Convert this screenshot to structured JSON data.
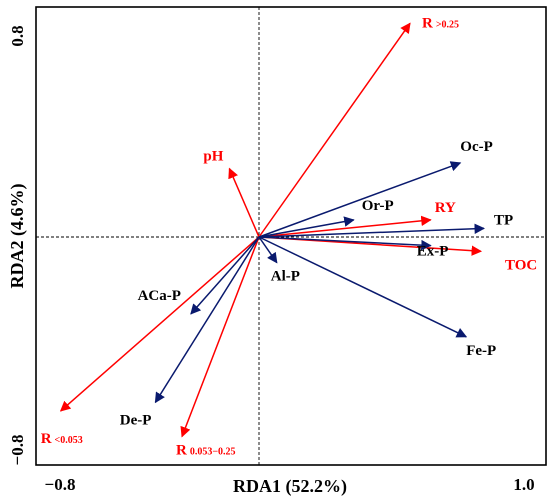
{
  "chart_data": {
    "type": "biplot",
    "xlabel": "RDA1 (52.2%)",
    "ylabel": "RDA2 (4.6%)",
    "xlim": [
      -0.8,
      1.0
    ],
    "ylim": [
      -0.8,
      0.8
    ],
    "x_ticks": [
      "−0.8",
      "1.0"
    ],
    "y_ticks": [
      "0.8",
      "−0.8"
    ],
    "colors": {
      "environment": "#ff0000",
      "response": "#0a1a6e"
    },
    "vectors": [
      {
        "label": "R",
        "sub": ">0.25",
        "group": "environment",
        "x": 0.51,
        "y": 0.75
      },
      {
        "label": "pH",
        "group": "environment",
        "x": -0.1,
        "y": 0.24
      },
      {
        "label": "RY",
        "group": "environment",
        "x": 0.58,
        "y": 0.06
      },
      {
        "label": "TOC",
        "group": "environment",
        "x": 0.75,
        "y": -0.05
      },
      {
        "label": "R",
        "sub": "<0.053",
        "group": "environment",
        "x": -0.67,
        "y": -0.61
      },
      {
        "label": "R",
        "sub": "0.053−0.25",
        "group": "environment",
        "x": -0.26,
        "y": -0.7
      },
      {
        "label": "Oc-P",
        "group": "response",
        "x": 0.68,
        "y": 0.26
      },
      {
        "label": "Or-P",
        "group": "response",
        "x": 0.32,
        "y": 0.06
      },
      {
        "label": "TP",
        "group": "response",
        "x": 0.76,
        "y": 0.03
      },
      {
        "label": "Ex-P",
        "group": "response",
        "x": 0.58,
        "y": -0.03
      },
      {
        "label": "Fe-P",
        "group": "response",
        "x": 0.7,
        "y": -0.35
      },
      {
        "label": "Al-P",
        "group": "response",
        "x": 0.06,
        "y": -0.09
      },
      {
        "label": "ACa-P",
        "group": "response",
        "x": -0.23,
        "y": -0.27
      },
      {
        "label": "De-P",
        "group": "response",
        "x": -0.35,
        "y": -0.58
      }
    ]
  }
}
